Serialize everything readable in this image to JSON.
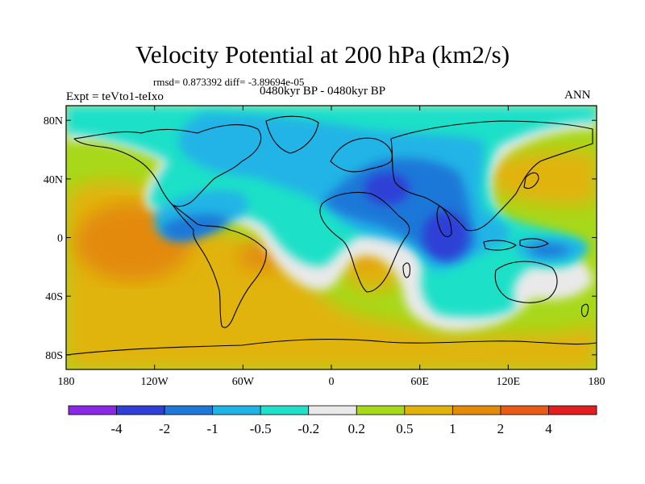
{
  "title": "Velocity Potential at 200 hPa (km2/s)",
  "stats_line": "rmsd= 0.873392 diff= -3.89694e-05",
  "expt_label": "Expt = teVto1-teIxo",
  "period_label": "0480kyr BP - 0480kyr BP",
  "season_label": "ANN",
  "map": {
    "x_ticks": [
      "180",
      "120W",
      "60W",
      "0",
      "60E",
      "120E",
      "180"
    ],
    "y_ticks": [
      "80N",
      "40N",
      "0",
      "40S",
      "80S"
    ],
    "lon_range": [
      -180,
      180
    ],
    "lat_range": [
      -90,
      90
    ]
  },
  "colorbar": {
    "colors": [
      "#8a28e6",
      "#2f3fd6",
      "#1f78d8",
      "#20b4e6",
      "#1fe0c8",
      "#e9e9e9",
      "#a8d81a",
      "#e1b30a",
      "#e38a08",
      "#e85a16",
      "#e02020"
    ],
    "labels": [
      "-4",
      "-2",
      "-1",
      "-0.5",
      "-0.2",
      "0.2",
      "0.5",
      "1",
      "2",
      "4"
    ]
  }
}
